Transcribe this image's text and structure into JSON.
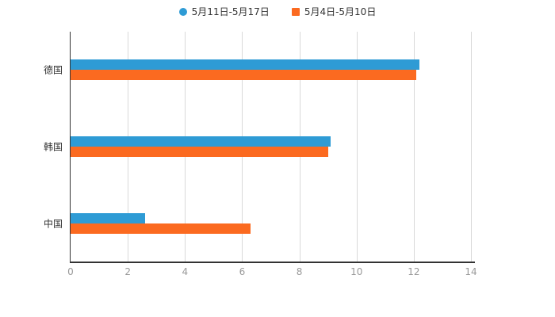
{
  "legend": {
    "items": [
      {
        "label": "5月11日-5月17日",
        "color": "#2E9BD5",
        "marker": "circle"
      },
      {
        "label": "5月4日-5月10日",
        "color": "#FB6A20",
        "marker": "square"
      }
    ]
  },
  "chart_data": {
    "type": "bar",
    "orientation": "horizontal",
    "title": "",
    "xlabel": "",
    "ylabel": "",
    "categories": [
      "德国",
      "韩国",
      "中国"
    ],
    "series": [
      {
        "name": "5月11日-5月17日",
        "color": "#2E9BD5",
        "values": [
          12.2,
          9.1,
          2.6
        ]
      },
      {
        "name": "5月4日-5月10日",
        "color": "#FB6A20",
        "values": [
          12.1,
          9.0,
          6.3
        ]
      }
    ],
    "xlim": [
      0,
      14
    ],
    "x_ticks": [
      0,
      2,
      4,
      6,
      8,
      10,
      12,
      14
    ],
    "grid": true,
    "legend_position": "top"
  }
}
